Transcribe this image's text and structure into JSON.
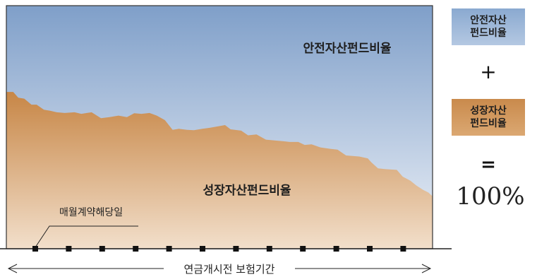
{
  "diagram": {
    "safe_fund_label": "안전자산펀드비율",
    "growth_fund_label": "성장자산펀드비율",
    "monthly_label": "매월계약해당일",
    "period_label": "연금개시전 보험기간",
    "marker_count": 12,
    "growth_share_profile": [
      [
        0.0,
        0.701
      ],
      [
        0.016,
        0.701
      ],
      [
        0.028,
        0.638
      ],
      [
        0.042,
        0.628
      ],
      [
        0.059,
        0.563
      ],
      [
        0.071,
        0.563
      ],
      [
        0.088,
        0.508
      ],
      [
        0.103,
        0.497
      ],
      [
        0.118,
        0.48
      ],
      [
        0.137,
        0.472
      ],
      [
        0.16,
        0.48
      ],
      [
        0.176,
        0.463
      ],
      [
        0.2,
        0.48
      ],
      [
        0.222,
        0.416
      ],
      [
        0.242,
        0.428
      ],
      [
        0.263,
        0.444
      ],
      [
        0.283,
        0.428
      ],
      [
        0.3,
        0.469
      ],
      [
        0.317,
        0.463
      ],
      [
        0.336,
        0.472
      ],
      [
        0.353,
        0.444
      ],
      [
        0.372,
        0.395
      ],
      [
        0.39,
        0.29
      ],
      [
        0.405,
        0.301
      ],
      [
        0.424,
        0.29
      ],
      [
        0.44,
        0.285
      ],
      [
        0.46,
        0.301
      ],
      [
        0.477,
        0.311
      ],
      [
        0.497,
        0.328
      ],
      [
        0.513,
        0.341
      ],
      [
        0.526,
        0.295
      ],
      [
        0.551,
        0.281
      ],
      [
        0.567,
        0.23
      ],
      [
        0.587,
        0.239
      ],
      [
        0.609,
        0.183
      ],
      [
        0.629,
        0.175
      ],
      [
        0.65,
        0.166
      ],
      [
        0.665,
        0.158
      ],
      [
        0.685,
        0.158
      ],
      [
        0.7,
        0.126
      ],
      [
        0.716,
        0.132
      ],
      [
        0.737,
        0.099
      ],
      [
        0.76,
        0.084
      ],
      [
        0.777,
        0.075
      ],
      [
        0.797,
        0.012
      ],
      [
        0.828,
        0.0
      ],
      [
        0.848,
        -0.02
      ],
      [
        0.856,
        -0.061
      ],
      [
        0.872,
        -0.128
      ],
      [
        0.89,
        -0.137
      ],
      [
        0.916,
        -0.145
      ],
      [
        0.93,
        -0.218
      ],
      [
        0.948,
        -0.262
      ],
      [
        0.962,
        -0.314
      ],
      [
        0.978,
        -0.362
      ],
      [
        0.99,
        -0.39
      ],
      [
        0.997,
        -0.42
      ],
      [
        1.0,
        -0.43
      ]
    ]
  },
  "legend": {
    "safe_line1": "안전자산",
    "safe_line2": "펀드비율",
    "plus": "+",
    "growth_line1": "성장자산",
    "growth_line2": "펀드비율",
    "equals": "=",
    "total": "100%"
  },
  "colors": {
    "safe_top": "#7f9fc9",
    "safe_bottom": "#eef2f8",
    "growth_top": "#c78646",
    "growth_bottom": "#f2dfcb",
    "frame": "#333333",
    "marker": "#111111"
  }
}
